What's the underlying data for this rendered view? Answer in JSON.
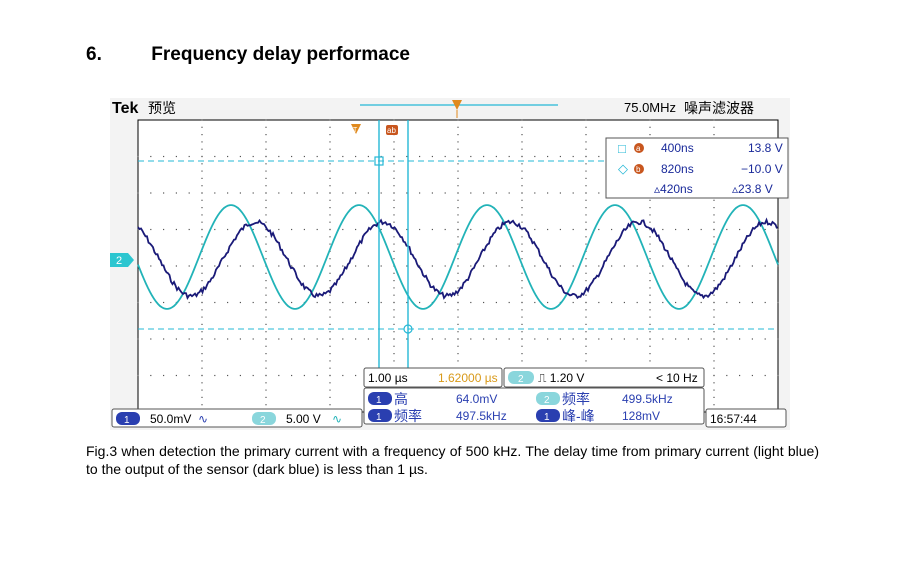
{
  "heading": {
    "number": "6.",
    "title": "Frequency delay performace"
  },
  "scope": {
    "brand": "Tek",
    "mode": "预览",
    "sample_rate": "75.0MHz",
    "filter_label": "噪声滤波器",
    "trigger_marker": "T",
    "cursor_a_marker": "ab",
    "cursor_panel": {
      "a_symbol": "□",
      "a_badge": "a",
      "a_time": "400ns",
      "a_value": "13.8 V",
      "b_symbol": "◇",
      "b_badge": "b",
      "b_time": "820ns",
      "b_value": "−10.0 V",
      "delta_time": "▵420ns",
      "delta_value": "▵23.8 V"
    },
    "channel2_marker": "2",
    "timebase": "1.00 µs",
    "trigger_pos": "1.62000 µs",
    "trigger_channel": "2",
    "trigger_level": "⎍ 1.20 V",
    "trigger_freq": "< 10 Hz",
    "meas": {
      "ch1_badge": "1",
      "high_label": "高",
      "high_value": "64.0mV",
      "freq_label": "频率",
      "freq_value": "497.5kHz",
      "ch2_badge": "2",
      "ch2_freq_label": "频率",
      "ch2_freq_value": "499.5kHz",
      "pk_label": "峰-峰",
      "pk_value": "128mV"
    },
    "ch1_scale": "50.0mV",
    "ch1_coupling": "∿",
    "ch2_badge": "2",
    "ch2_scale": "5.00 V",
    "ch2_coupling": "∿",
    "clock": "16:57:44"
  },
  "caption": "Fig.3 when detection the primary current with a frequency of 500 kHz. The delay time from primary current (light blue) to the output of the sensor (dark blue) is less than 1 µs.",
  "colors": {
    "ch1": "#1a1a78",
    "ch2": "#22b3b8",
    "cursor": "#26b8d6"
  }
}
